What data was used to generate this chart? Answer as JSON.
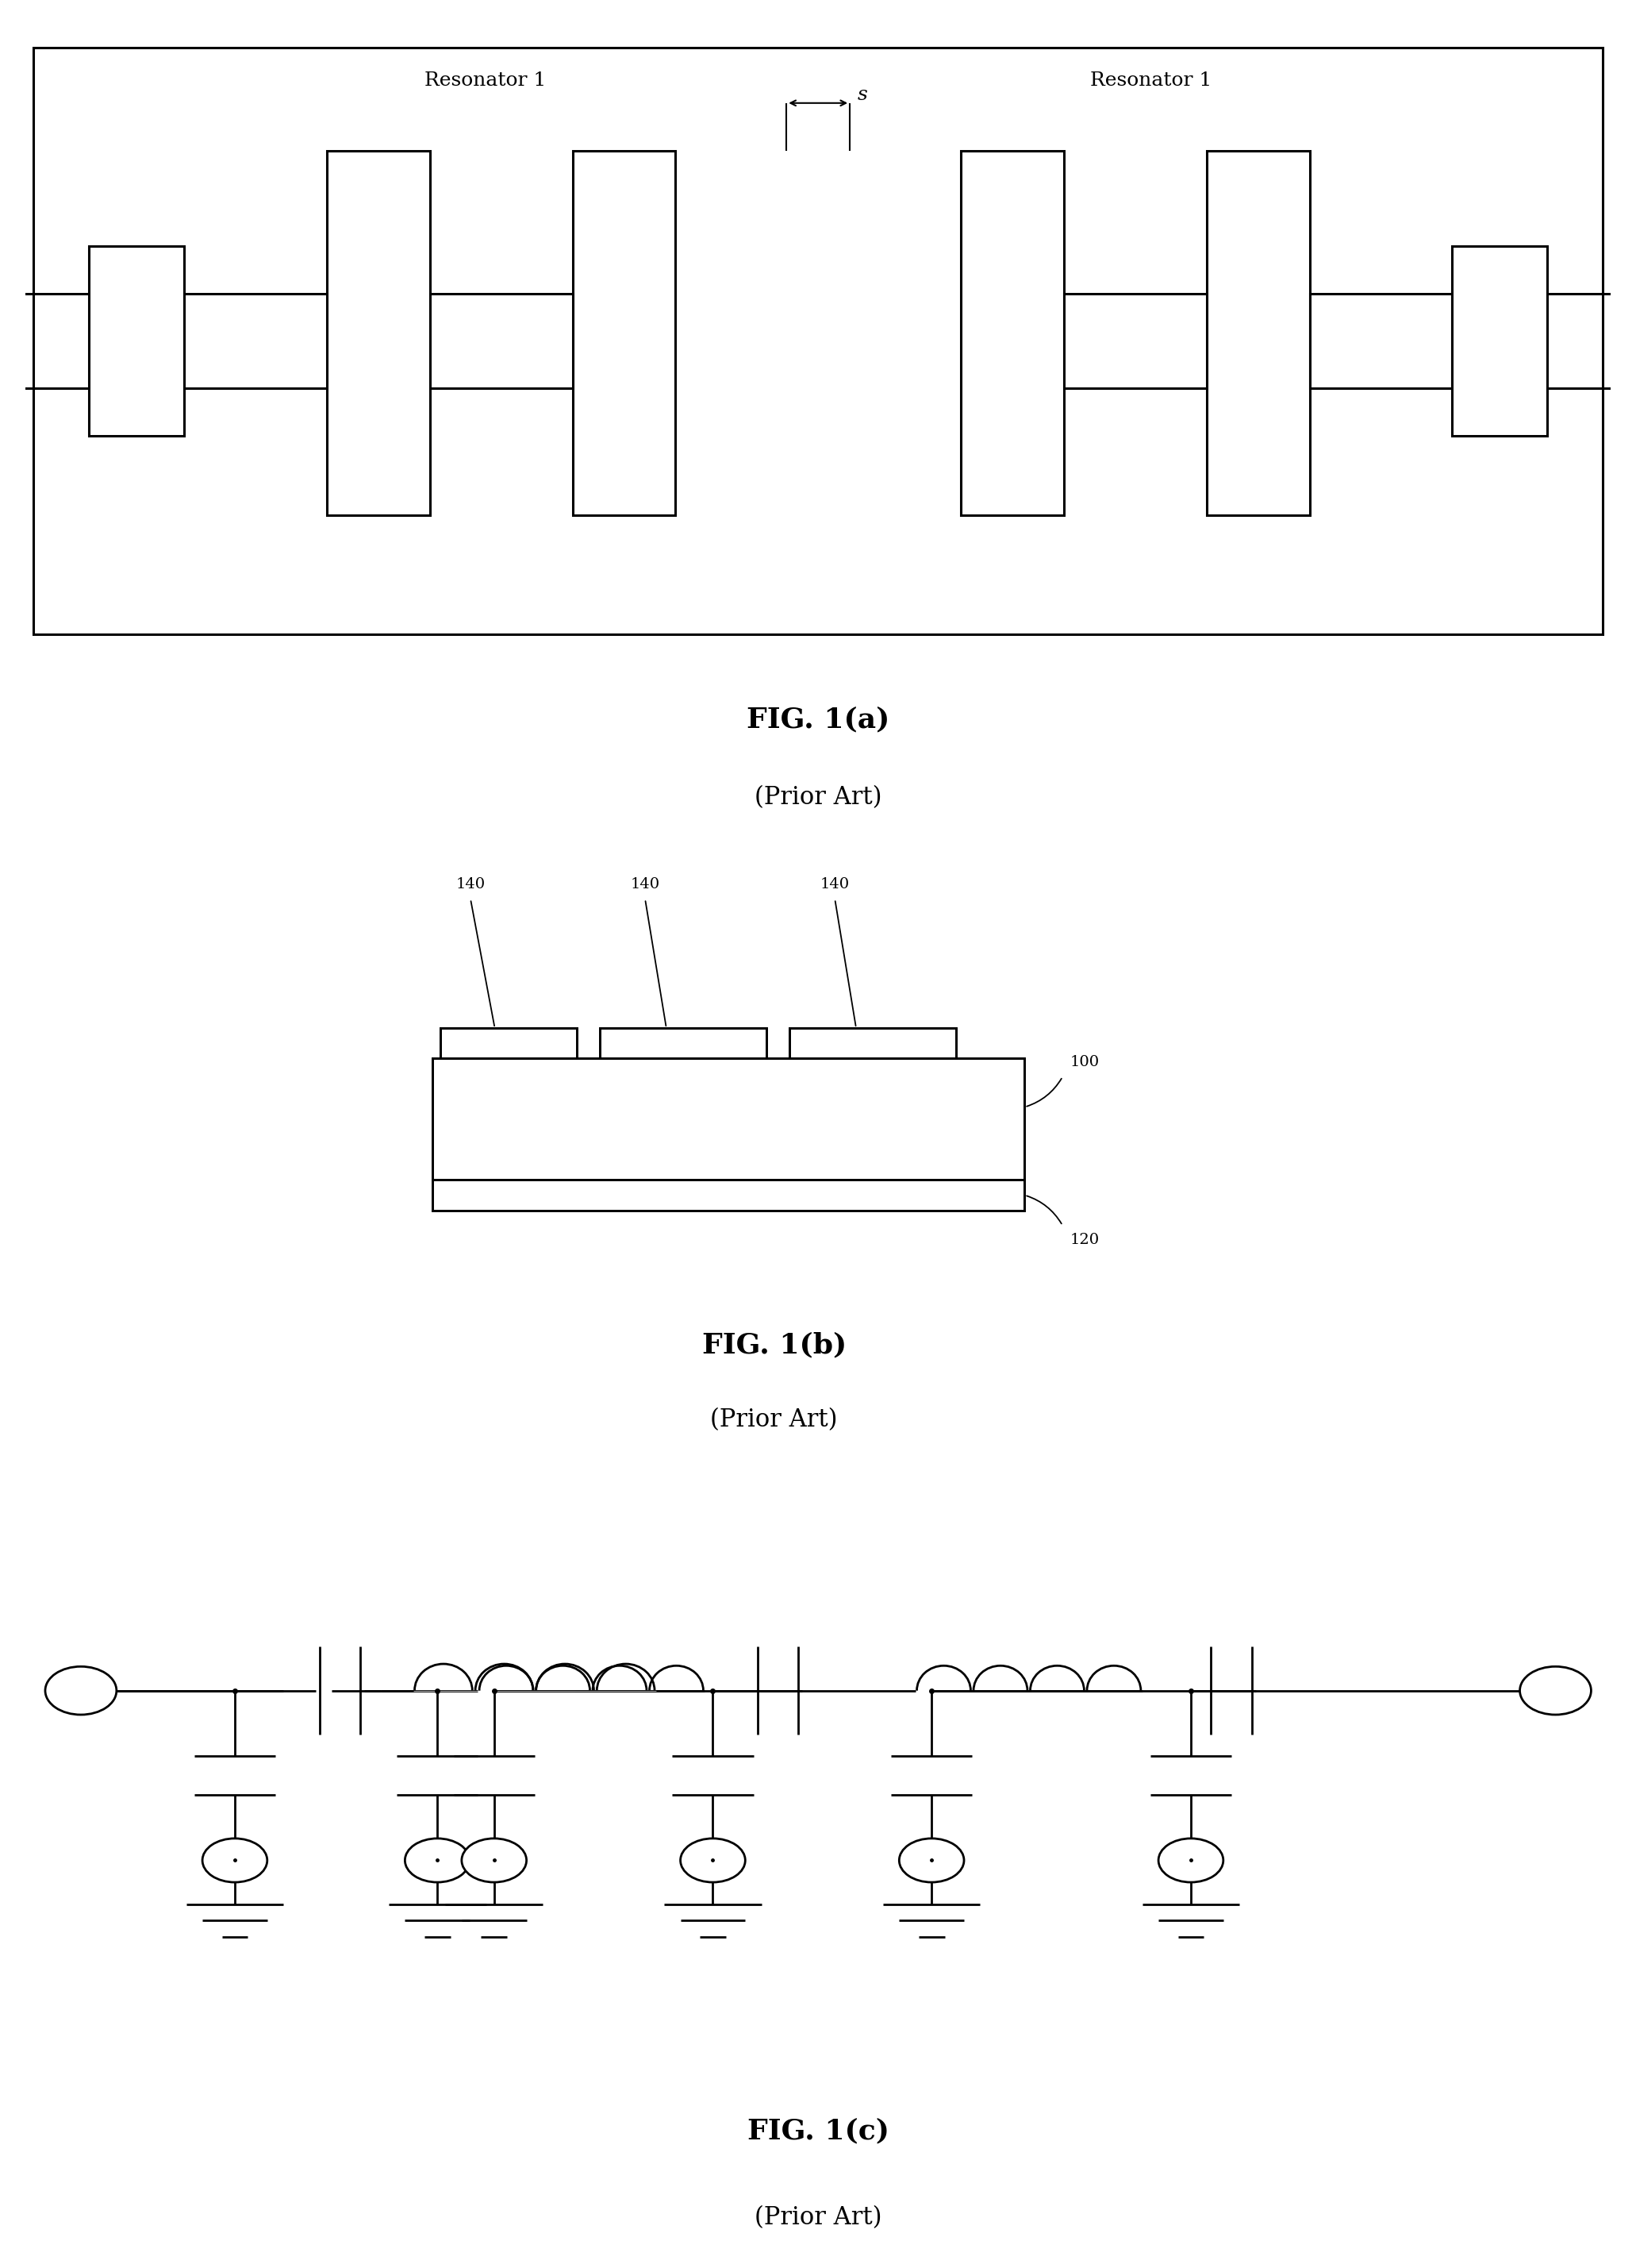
{
  "fig_width": 22.2,
  "fig_height": 31.15,
  "bg_color": "#ffffff",
  "fig1a_label": "FIG. 1(a)",
  "fig1b_label": "FIG. 1(b)",
  "fig1c_label": "FIG. 1(c)",
  "prior_art": "(Prior Art)",
  "res1_label": "Resonator 1",
  "s_label": "s",
  "label_100": "100",
  "label_120": "120",
  "label_140": "140"
}
